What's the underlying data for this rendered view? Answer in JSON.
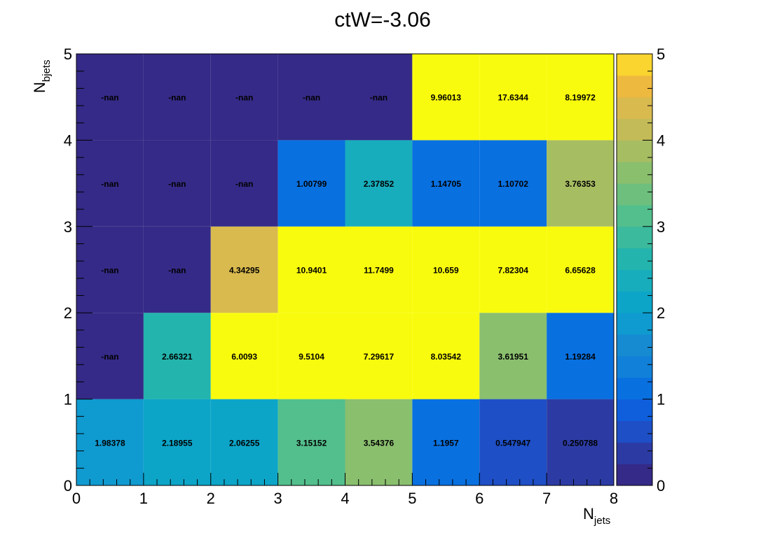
{
  "chart_data": {
    "type": "heatmap",
    "title": "ctW=-3.06",
    "xlabel": "N",
    "xlabel_sub": "jets",
    "ylabel": "N",
    "ylabel_sub": "bjets",
    "xlim": [
      0,
      8
    ],
    "ylim": [
      0,
      5
    ],
    "x_ticks": [
      "0",
      "1",
      "2",
      "3",
      "4",
      "5",
      "6",
      "7",
      "8"
    ],
    "y_ticks": [
      "0",
      "1",
      "2",
      "3",
      "4",
      "5"
    ],
    "x_bins": [
      0,
      1,
      2,
      3,
      4,
      5,
      6,
      7,
      8
    ],
    "y_bins": [
      0,
      1,
      2,
      3,
      4,
      5
    ],
    "color_scale": {
      "zlim": [
        0,
        5
      ],
      "ticks": [
        "0",
        "1",
        "2",
        "3",
        "4",
        "5"
      ],
      "steps": 20,
      "colors": [
        "#352a87",
        "#2c3ba4",
        "#1e4fc6",
        "#0f5fdd",
        "#0970e0",
        "#1180d8",
        "#168bd2",
        "#0f9ad0",
        "#0ca5c8",
        "#18adbc",
        "#23b4ad",
        "#3bba9d",
        "#53bf8d",
        "#6ebf7d",
        "#8abf6e",
        "#a7bd62",
        "#c2bb58",
        "#d9ba4e",
        "#eeb93f",
        "#fad42f",
        "#f9fb0e"
      ]
    },
    "cells": [
      [
        1.98378,
        2.18955,
        2.06255,
        3.15152,
        3.54376,
        1.1957,
        0.547947,
        0.250788
      ],
      [
        null,
        2.66321,
        6.0093,
        9.5104,
        7.29617,
        8.03542,
        3.61951,
        1.19284
      ],
      [
        null,
        null,
        4.34295,
        10.9401,
        11.7499,
        10.659,
        7.82304,
        6.65628
      ],
      [
        null,
        null,
        null,
        1.00799,
        2.37852,
        1.14705,
        1.10702,
        3.76353
      ],
      [
        null,
        null,
        null,
        null,
        null,
        9.96013,
        17.6344,
        8.19972
      ]
    ],
    "labels": [
      [
        "1.98378",
        "2.18955",
        "2.06255",
        "3.15152",
        "3.54376",
        "1.1957",
        "0.547947",
        "0.250788"
      ],
      [
        "-nan",
        "2.66321",
        "6.0093",
        "9.5104",
        "7.29617",
        "8.03542",
        "3.61951",
        "1.19284"
      ],
      [
        "-nan",
        "-nan",
        "4.34295",
        "10.9401",
        "11.7499",
        "10.659",
        "7.82304",
        "6.65628"
      ],
      [
        "-nan",
        "-nan",
        "-nan",
        "1.00799",
        "2.37852",
        "1.14705",
        "1.10702",
        "3.76353"
      ],
      [
        "-nan",
        "-nan",
        "-nan",
        "-nan",
        "-nan",
        "9.96013",
        "17.6344",
        "8.19972"
      ]
    ],
    "nan_color": "#352a87"
  }
}
